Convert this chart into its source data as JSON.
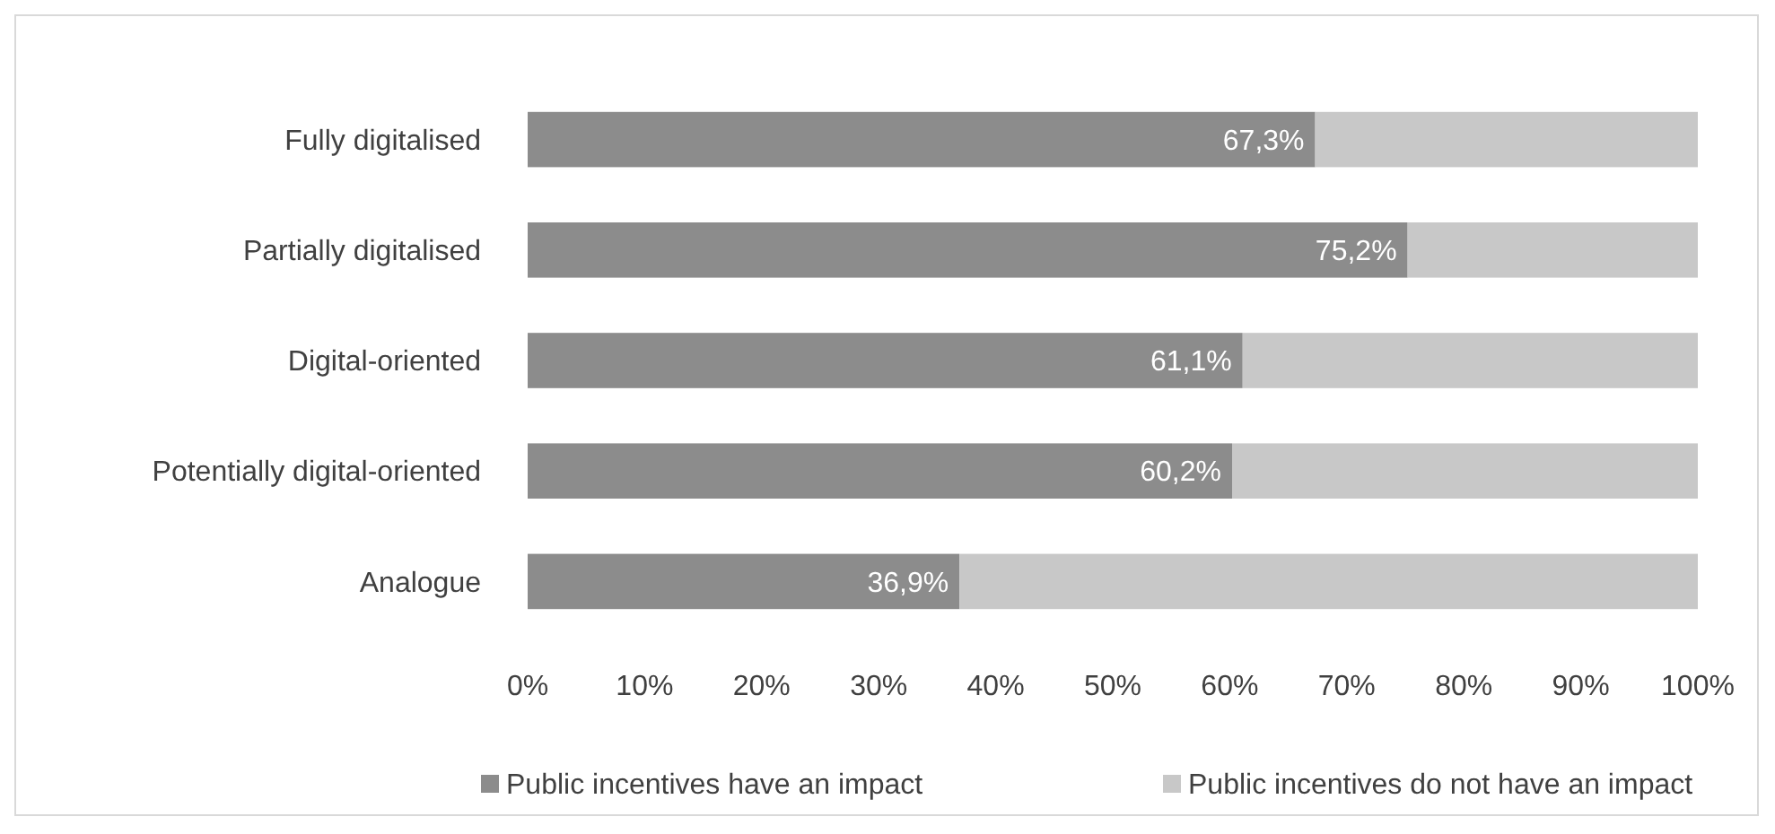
{
  "chart_data": {
    "type": "bar",
    "orientation": "horizontal",
    "stacked": true,
    "categories": [
      "Fully digitalised",
      "Partially digitalised",
      "Digital-oriented",
      "Potentially digital-oriented",
      "Analogue"
    ],
    "series": [
      {
        "name": "Public incentives have an impact",
        "color": "#8c8c8c",
        "values": [
          67.3,
          75.2,
          61.1,
          60.2,
          36.9
        ],
        "value_labels": [
          "67,3%",
          "75,2%",
          "61,1%",
          "60,2%",
          "36,9%"
        ]
      },
      {
        "name": "Public incentives do not have an impact",
        "color": "#c8c8c8",
        "values": [
          32.7,
          24.8,
          38.9,
          39.8,
          63.1
        ]
      }
    ],
    "xlim": [
      0,
      100
    ],
    "xticks": [
      {
        "value": 0,
        "label": "0%"
      },
      {
        "value": 10,
        "label": "10%"
      },
      {
        "value": 20,
        "label": "20%"
      },
      {
        "value": 30,
        "label": "30%"
      },
      {
        "value": 40,
        "label": "40%"
      },
      {
        "value": 50,
        "label": "50%"
      },
      {
        "value": 60,
        "label": "60%"
      },
      {
        "value": 70,
        "label": "70%"
      },
      {
        "value": 80,
        "label": "80%"
      },
      {
        "value": 90,
        "label": "90%"
      },
      {
        "value": 100,
        "label": "100%"
      }
    ],
    "legend": "bottom",
    "grid": false
  }
}
